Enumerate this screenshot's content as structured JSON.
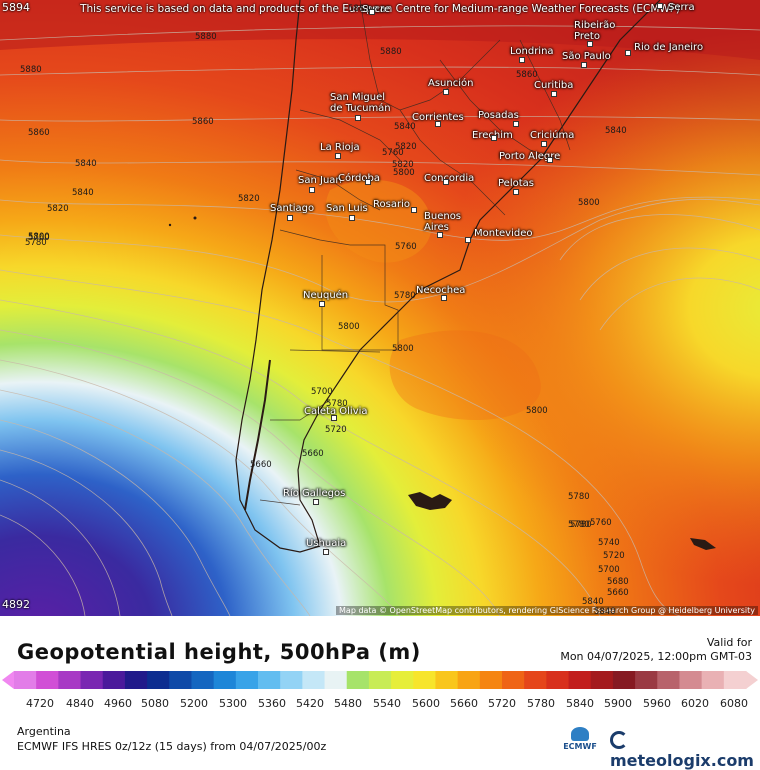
{
  "banner": "This service is based on data and products of the European Centre for Medium-range Weather Forecasts (ECMWF)",
  "attribution": "Map data © OpenStreetMap contributors, rendering GIScience Research Group @ Heidelberg University",
  "corner_max": "5894",
  "corner_min": "4892",
  "cities": [
    {
      "name": "Sucre"
    },
    {
      "name": "Serra"
    },
    {
      "name": "Ribeirão\nPreto"
    },
    {
      "name": "Londrina"
    },
    {
      "name": "São Paulo"
    },
    {
      "name": "Rio de Janeiro"
    },
    {
      "name": "Asunción"
    },
    {
      "name": "Curitiba"
    },
    {
      "name": "San Miguel\nde Tucumán"
    },
    {
      "name": "Corrientes"
    },
    {
      "name": "Posadas"
    },
    {
      "name": "Erechim"
    },
    {
      "name": "Criciúma"
    },
    {
      "name": "La Rioja"
    },
    {
      "name": "Porto Alegre"
    },
    {
      "name": "San Juan"
    },
    {
      "name": "Córdoba"
    },
    {
      "name": "Concordia"
    },
    {
      "name": "Pelotas"
    },
    {
      "name": "Santiago"
    },
    {
      "name": "San Luis"
    },
    {
      "name": "Rosario"
    },
    {
      "name": "Buenos\nAires"
    },
    {
      "name": "Montevideo"
    },
    {
      "name": "Neuquén"
    },
    {
      "name": "Necochea"
    },
    {
      "name": "Caleta Olivia"
    },
    {
      "name": "Río Gallegos"
    },
    {
      "name": "Ushuaia"
    }
  ],
  "contour_labels": [
    "5880",
    "5880",
    "5860",
    "5860",
    "5840",
    "5840",
    "5820",
    "5820",
    "5800",
    "5780",
    "5760",
    "5780",
    "5800",
    "5760",
    "5820",
    "5840",
    "5840",
    "5860",
    "5880",
    "5760",
    "5780",
    "5800",
    "5800",
    "5800",
    "5700",
    "5780",
    "5720",
    "5660",
    "5660",
    "5780",
    "5780",
    "5760",
    "5740",
    "5720",
    "5700",
    "5680",
    "5660",
    "5840",
    "5880",
    "5820",
    "5800",
    "5840"
  ],
  "panel": {
    "title": "Geopotential height, 500hPa (m)",
    "valid_label": "Valid for",
    "valid_time": "Mon 04/07/2025, 12:00pm GMT-03",
    "region": "Argentina",
    "model": "ECMWF IFS HRES 0z/12z (15 days) from  04/07/2025/00z",
    "brand": "meteologix.com",
    "ecmwf_logo": "ECMWF"
  },
  "legend": {
    "ticks": [
      "4720",
      "4840",
      "4960",
      "5080",
      "5200",
      "5300",
      "5360",
      "5420",
      "5480",
      "5540",
      "5600",
      "5660",
      "5720",
      "5780",
      "5840",
      "5900",
      "5960",
      "6020",
      "6080"
    ],
    "colors": [
      "#e27de8",
      "#d14fd6",
      "#a83ac5",
      "#7a27b2",
      "#4b1a9b",
      "#211a8a",
      "#0d2d90",
      "#0f4aa8",
      "#1466c0",
      "#1d86d8",
      "#38a3e8",
      "#62bdf0",
      "#93d3f5",
      "#c4e7f7",
      "#e8f3f4",
      "#a6e36a",
      "#c8ec55",
      "#e6ee3a",
      "#f7e52c",
      "#f9c61c",
      "#f8a414",
      "#f58512",
      "#ef6416",
      "#e5461b",
      "#d8301c",
      "#c21e1c",
      "#a41a1d",
      "#861a22",
      "#9a3a43",
      "#b8636b",
      "#d48b91",
      "#e9b1b4",
      "#f4d0d1"
    ],
    "arrow_left": "#f087f0",
    "arrow_right": "#f4d0d1"
  }
}
